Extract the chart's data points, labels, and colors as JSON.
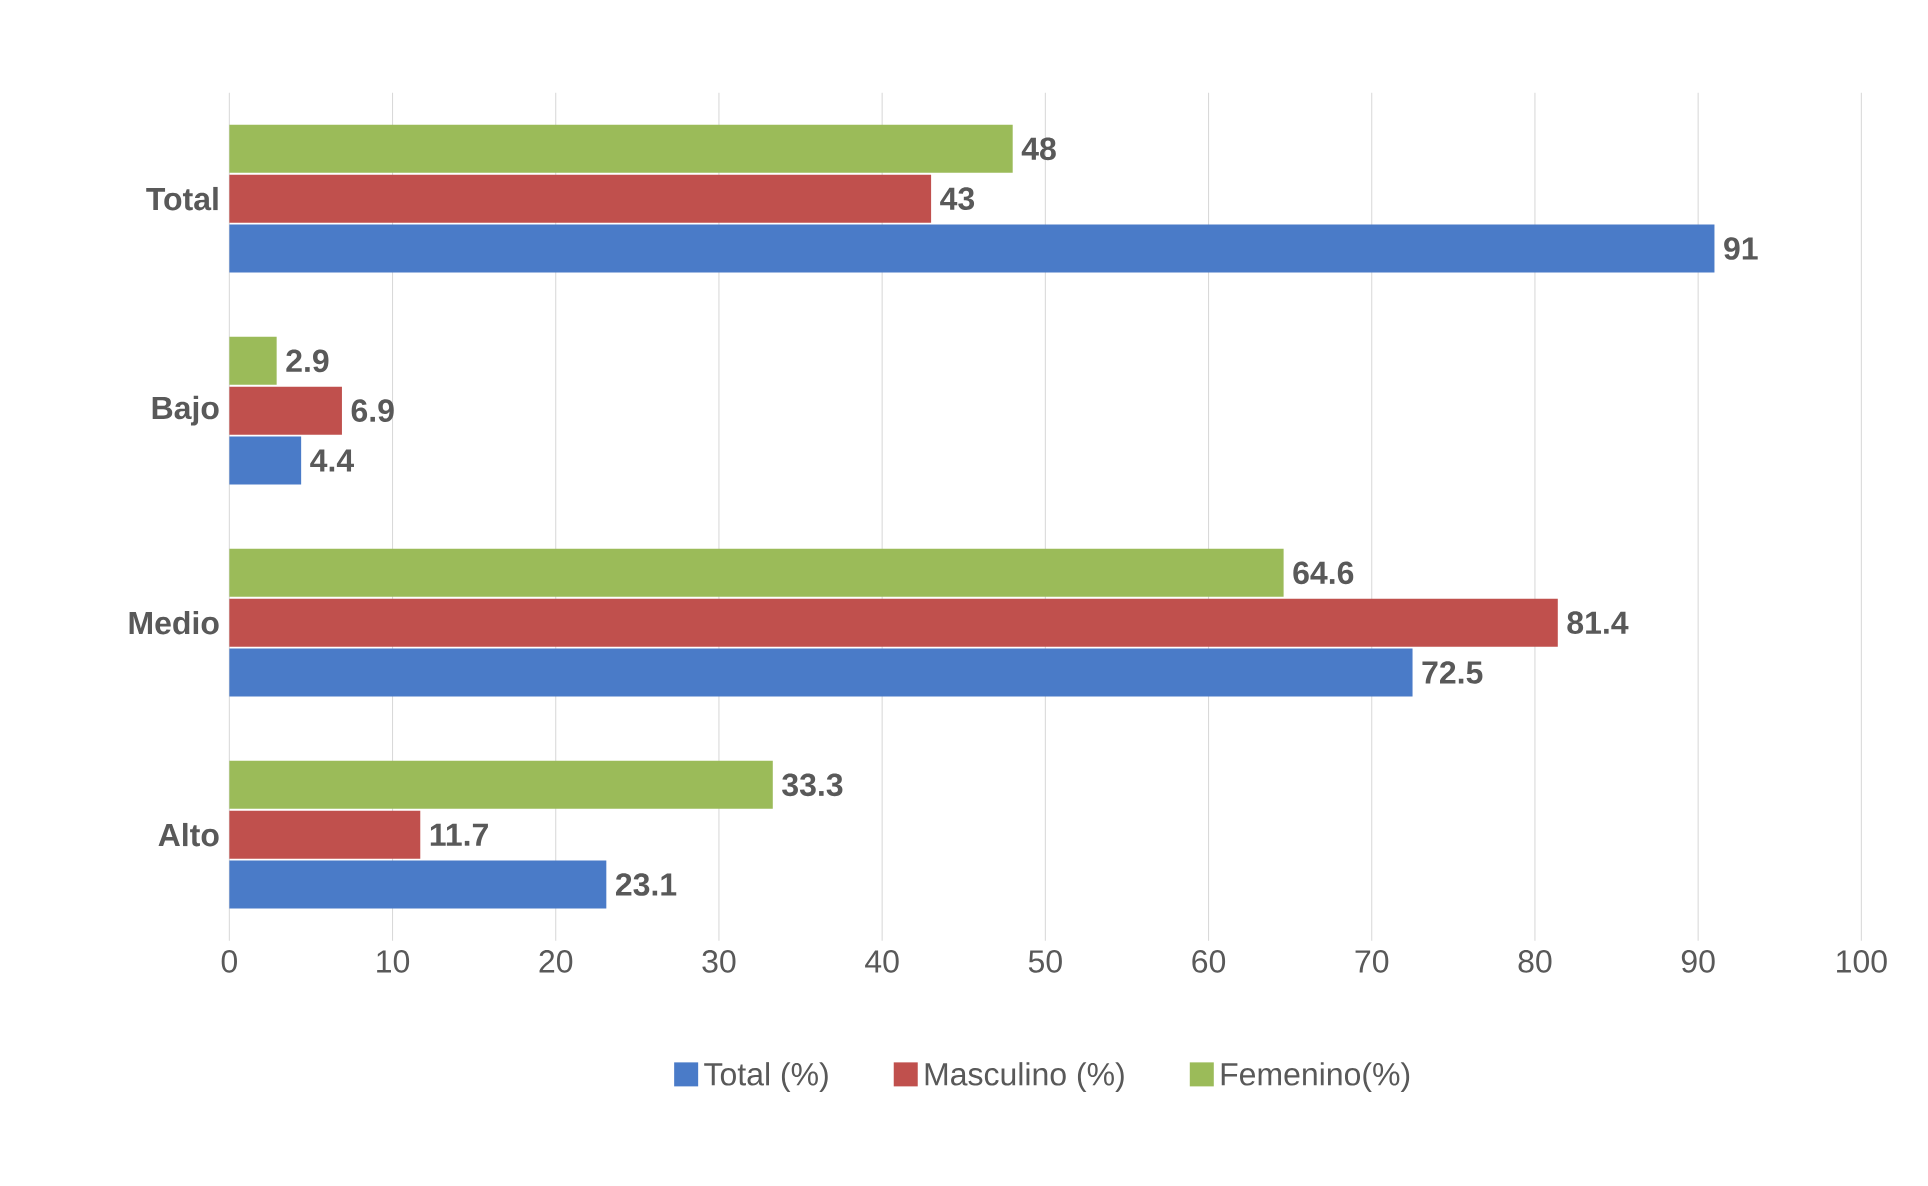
{
  "chart_data": {
    "type": "bar",
    "orientation": "horizontal",
    "categories": [
      "Total",
      "Bajo",
      "Medio",
      "Alto"
    ],
    "series": [
      {
        "name": "Total (%)",
        "color": "#4a7bc8",
        "values": [
          91,
          4.4,
          72.5,
          23.1
        ]
      },
      {
        "name": "Masculino (%)",
        "color": "#c0504d",
        "values": [
          43,
          6.9,
          81.4,
          11.7
        ]
      },
      {
        "name": "Femenino(%)",
        "color": "#9bbb59",
        "values": [
          48,
          2.9,
          64.6,
          33.3
        ]
      }
    ],
    "xlim": [
      0,
      100
    ],
    "xticks": [
      0,
      10,
      20,
      30,
      40,
      50,
      60,
      70,
      80,
      90,
      100
    ],
    "grid": "x",
    "legend": "bottom",
    "data_labels": true
  }
}
